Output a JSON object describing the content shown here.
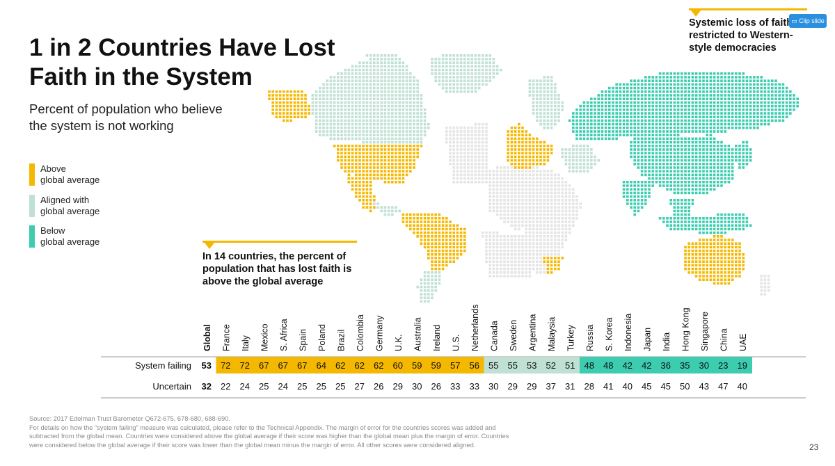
{
  "title_line1": "1 in 2 Countries Have Lost",
  "title_line2": "Faith in the System",
  "subtitle_line1": "Percent of population who believe",
  "subtitle_line2": "the system is not working",
  "legend": [
    {
      "line1": "Above",
      "line2": "global average",
      "color": "#f5b800"
    },
    {
      "line1": "Aligned with",
      "line2": "global average",
      "color": "#bfe0d3"
    },
    {
      "line1": "Below",
      "line2": "global average",
      "color": "#3cccb0"
    }
  ],
  "callout_top": {
    "line1": "Systemic loss of faith",
    "line2": "restricted to Western-",
    "line3": "style democracies"
  },
  "callout_mid": {
    "line1": "In 14 countries, the percent of",
    "line2": "population that has lost faith is",
    "line3": "above the global average"
  },
  "clip_button": "Clip slide",
  "source_lines": [
    "Source: 2017 Edelman Trust Barometer Q672-675, 678-680, 688-690.",
    "For details on how the “system failing” measure was calculated, please refer to the Technical Appendix. The margin of error for the countries scores was added and",
    "subtracted from the global mean. Countries were considered above the global average if their score was higher than the global mean plus the margin of error. Countries",
    "were considered below the global average if their score was lower than the global mean minus the margin of error. All other scores were considered aligned."
  ],
  "page_number": "23",
  "colors": {
    "above": "#f5b800",
    "aligned": "#bfe0d3",
    "below": "#3cccb0"
  },
  "chart_data": {
    "type": "table",
    "row_labels": [
      "System failing",
      "Uncertain"
    ],
    "global": {
      "label": "Global",
      "system_failing": 53,
      "uncertain": 32
    },
    "countries": [
      {
        "name": "France",
        "system_failing": 72,
        "uncertain": 22,
        "group": "above"
      },
      {
        "name": "Italy",
        "system_failing": 72,
        "uncertain": 24,
        "group": "above"
      },
      {
        "name": "Mexico",
        "system_failing": 67,
        "uncertain": 25,
        "group": "above"
      },
      {
        "name": "S. Africa",
        "system_failing": 67,
        "uncertain": 24,
        "group": "above"
      },
      {
        "name": "Spain",
        "system_failing": 67,
        "uncertain": 25,
        "group": "above"
      },
      {
        "name": "Poland",
        "system_failing": 64,
        "uncertain": 25,
        "group": "above"
      },
      {
        "name": "Brazil",
        "system_failing": 62,
        "uncertain": 25,
        "group": "above"
      },
      {
        "name": "Colombia",
        "system_failing": 62,
        "uncertain": 27,
        "group": "above"
      },
      {
        "name": "Germany",
        "system_failing": 62,
        "uncertain": 26,
        "group": "above"
      },
      {
        "name": "U.K.",
        "system_failing": 60,
        "uncertain": 29,
        "group": "above"
      },
      {
        "name": "Australia",
        "system_failing": 59,
        "uncertain": 30,
        "group": "above"
      },
      {
        "name": "Ireland",
        "system_failing": 59,
        "uncertain": 26,
        "group": "above"
      },
      {
        "name": "U.S.",
        "system_failing": 57,
        "uncertain": 33,
        "group": "above"
      },
      {
        "name": "Netherlands",
        "system_failing": 56,
        "uncertain": 33,
        "group": "above"
      },
      {
        "name": "Canada",
        "system_failing": 55,
        "uncertain": 30,
        "group": "aligned"
      },
      {
        "name": "Sweden",
        "system_failing": 55,
        "uncertain": 29,
        "group": "aligned"
      },
      {
        "name": "Argentina",
        "system_failing": 53,
        "uncertain": 29,
        "group": "aligned"
      },
      {
        "name": "Malaysia",
        "system_failing": 52,
        "uncertain": 37,
        "group": "aligned"
      },
      {
        "name": "Turkey",
        "system_failing": 51,
        "uncertain": 31,
        "group": "aligned"
      },
      {
        "name": "Russia",
        "system_failing": 48,
        "uncertain": 28,
        "group": "below"
      },
      {
        "name": "S. Korea",
        "system_failing": 48,
        "uncertain": 41,
        "group": "below"
      },
      {
        "name": "Indonesia",
        "system_failing": 42,
        "uncertain": 40,
        "group": "below"
      },
      {
        "name": "Japan",
        "system_failing": 42,
        "uncertain": 45,
        "group": "below"
      },
      {
        "name": "India",
        "system_failing": 36,
        "uncertain": 45,
        "group": "below"
      },
      {
        "name": "Hong Kong",
        "system_failing": 35,
        "uncertain": 50,
        "group": "below"
      },
      {
        "name": "Singapore",
        "system_failing": 30,
        "uncertain": 43,
        "group": "below"
      },
      {
        "name": "China",
        "system_failing": 23,
        "uncertain": 47,
        "group": "below"
      },
      {
        "name": "UAE",
        "system_failing": 19,
        "uncertain": 40,
        "group": "below"
      }
    ]
  }
}
